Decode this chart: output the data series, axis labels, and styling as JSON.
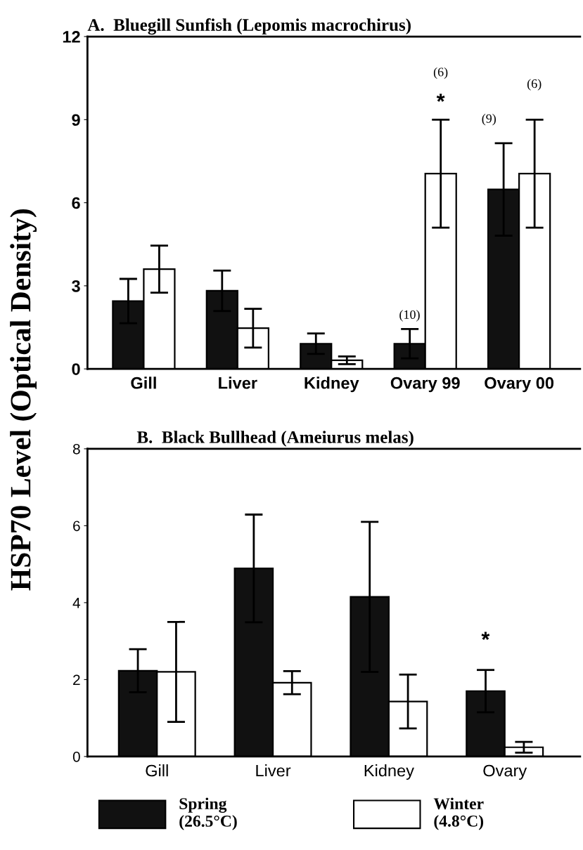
{
  "chart_data": [
    {
      "type": "bar",
      "title": "A.  Bluegill Sunfish (Lepomis macrochirus)",
      "ylabel": "HSP70 Level (Optical Density)",
      "categories": [
        "Gill",
        "Liver",
        "Kidney",
        "Ovary 99",
        "Ovary 00"
      ],
      "ylim": [
        0,
        12
      ],
      "yticks": [
        0,
        3,
        6,
        9,
        12
      ],
      "series": [
        {
          "name": "Spring\n(26.5°C)",
          "color": "#111111",
          "values": [
            2.45,
            2.82,
            0.91,
            0.91,
            6.48
          ],
          "errors": [
            0.8,
            0.73,
            0.37,
            0.53,
            1.67
          ]
        },
        {
          "name": "Winter\n(4.8°C)",
          "color": "#ffffff",
          "values": [
            3.6,
            1.47,
            0.31,
            7.05,
            7.05
          ],
          "errors": [
            0.85,
            0.7,
            0.14,
            1.95,
            1.95
          ]
        }
      ],
      "legend": "bottom",
      "annotations": [
        "(10)",
        "(6)",
        "*",
        "(9)",
        "(6)"
      ]
    },
    {
      "type": "bar",
      "title": "B.  Black Bullhead (Ameiurus melas)",
      "categories": [
        "Gill",
        "Liver",
        "Kidney",
        "Ovary"
      ],
      "ylim": [
        0,
        8
      ],
      "yticks": [
        0,
        2,
        4,
        6,
        8
      ],
      "series": [
        {
          "color": "#111111",
          "values": [
            2.23,
            4.89,
            4.15,
            1.7
          ],
          "errors": [
            0.56,
            1.4,
            1.95,
            0.55
          ]
        },
        {
          "color": "#ffffff",
          "values": [
            2.2,
            1.92,
            1.43,
            0.24
          ],
          "errors": [
            1.3,
            0.3,
            0.7,
            0.14
          ]
        }
      ],
      "annotations": [
        "*"
      ]
    }
  ]
}
